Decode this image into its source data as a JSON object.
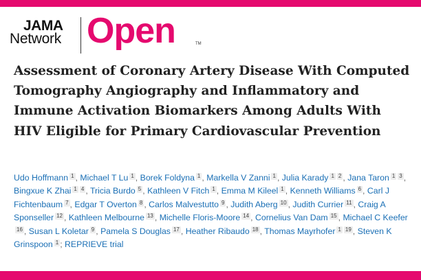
{
  "brand": {
    "line1": "JAMA",
    "line2": "Network",
    "product": "Open",
    "tm": "TM",
    "color": "#e5096e"
  },
  "article": {
    "title": "Assessment of Coronary Artery Disease With Computed Tomography Angiography and Inflammatory and Immune Activation Biomarkers Among Adults With HIV Eligible for Primary Cardiovascular Prevention",
    "authors": [
      {
        "name": "Udo Hoffmann",
        "sups": [
          "1"
        ]
      },
      {
        "name": "Michael T Lu",
        "sups": [
          "1"
        ]
      },
      {
        "name": "Borek Foldyna",
        "sups": [
          "1"
        ]
      },
      {
        "name": "Markella V Zanni",
        "sups": [
          "1"
        ]
      },
      {
        "name": "Julia Karady",
        "sups": [
          "1",
          "2"
        ]
      },
      {
        "name": "Jana Taron",
        "sups": [
          "1",
          "3"
        ]
      },
      {
        "name": "Bingxue K Zhai",
        "sups": [
          "1",
          "4"
        ]
      },
      {
        "name": "Tricia Burdo",
        "sups": [
          "5"
        ]
      },
      {
        "name": "Kathleen V Fitch",
        "sups": [
          "1"
        ]
      },
      {
        "name": "Emma M Kileel",
        "sups": [
          "1"
        ]
      },
      {
        "name": "Kenneth Williams",
        "sups": [
          "6"
        ]
      },
      {
        "name": "Carl J Fichtenbaum",
        "sups": [
          "7"
        ]
      },
      {
        "name": "Edgar T Overton",
        "sups": [
          "8"
        ]
      },
      {
        "name": "Carlos Malvestutto",
        "sups": [
          "9"
        ]
      },
      {
        "name": "Judith Aberg",
        "sups": [
          "10"
        ]
      },
      {
        "name": "Judith Currier",
        "sups": [
          "11"
        ]
      },
      {
        "name": "Craig A Sponseller",
        "sups": [
          "12"
        ]
      },
      {
        "name": "Kathleen Melbourne",
        "sups": [
          "13"
        ]
      },
      {
        "name": "Michelle Floris-Moore",
        "sups": [
          "14"
        ]
      },
      {
        "name": "Cornelius Van Dam",
        "sups": [
          "15"
        ]
      },
      {
        "name": "Michael C Keefer",
        "sups": [
          "16"
        ]
      },
      {
        "name": "Susan L Koletar",
        "sups": [
          "9"
        ]
      },
      {
        "name": "Pamela S Douglas",
        "sups": [
          "17"
        ]
      },
      {
        "name": "Heather Ribaudo",
        "sups": [
          "18"
        ]
      },
      {
        "name": "Thomas Mayrhofer",
        "sups": [
          "1",
          "19"
        ]
      },
      {
        "name": "Steven K Grinspoon",
        "sups": [
          "1"
        ]
      }
    ],
    "group": "REPRIEVE trial"
  }
}
